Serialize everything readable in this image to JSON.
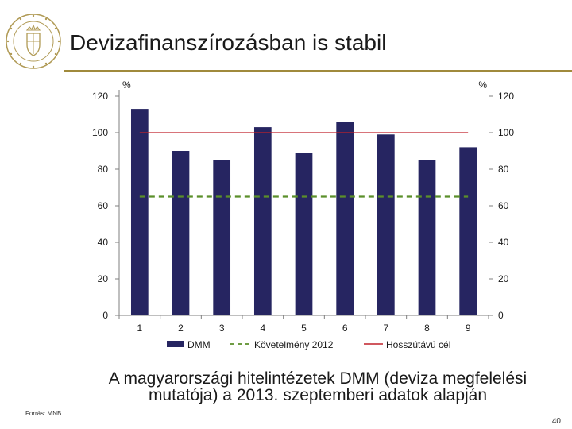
{
  "header": {
    "title": "Devizafinanszírozásban is stabil"
  },
  "chart_data": {
    "type": "bar",
    "categories": [
      "1",
      "2",
      "3",
      "4",
      "5",
      "6",
      "7",
      "8",
      "9"
    ],
    "series": [
      {
        "name": "DMM",
        "type": "bar",
        "color": "#262561",
        "values": [
          113,
          90,
          85,
          103,
          89,
          106,
          99,
          85,
          92
        ]
      },
      {
        "name": "Követelmény 2012",
        "type": "line-dashed",
        "color": "#5b8f2a",
        "value": 65
      },
      {
        "name": "Hosszútávú cél",
        "type": "line",
        "color": "#c0202a",
        "value": 100
      }
    ],
    "ylim": [
      0,
      120
    ],
    "yticks": [
      0,
      20,
      40,
      60,
      80,
      100,
      120
    ],
    "yticks_labels": [
      "0",
      "20",
      "40",
      "60",
      "80",
      "100",
      "120"
    ],
    "ylabel_left": "%",
    "ylabel_right": "%",
    "legend_position": "bottom",
    "grid": false
  },
  "caption": {
    "line1": "A magyarországi hitelintézetek DMM (deviza megfelelési",
    "line2": "mutatója) a  2013. szeptemberi adatok alapján"
  },
  "footer": {
    "source": "Forrás: MNB.",
    "page_number": "40"
  },
  "logo": {
    "icon": "central-bank-seal-icon"
  }
}
